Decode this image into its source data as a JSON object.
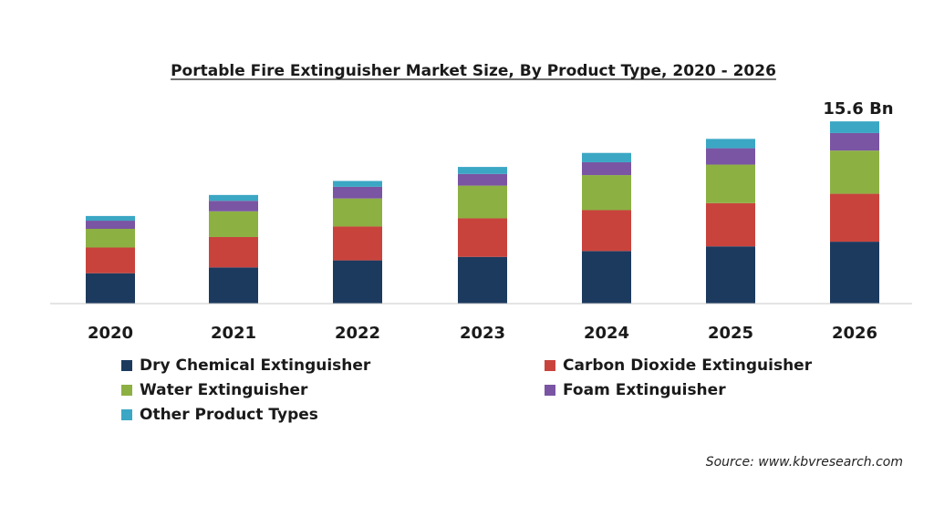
{
  "chart_data": {
    "type": "bar",
    "stacked": true,
    "title": "Portable Fire Extinguisher Market Size, By Product Type, 2020 - 2026",
    "categories": [
      "2020",
      "2021",
      "2022",
      "2023",
      "2024",
      "2025",
      "2026"
    ],
    "series": [
      {
        "name": "Dry Chemical Extinguisher",
        "color": "#1c3a5e",
        "values": [
          2.6,
          3.1,
          3.7,
          4.0,
          4.5,
          4.9,
          5.3
        ]
      },
      {
        "name": "Carbon Dioxide Extinguisher",
        "color": "#c9433d",
        "values": [
          2.2,
          2.6,
          2.9,
          3.3,
          3.5,
          3.7,
          4.1
        ]
      },
      {
        "name": "Water Extinguisher",
        "color": "#8db043",
        "values": [
          1.6,
          2.2,
          2.4,
          2.8,
          3.0,
          3.3,
          3.7
        ]
      },
      {
        "name": "Foam Extinguisher",
        "color": "#7a55a3",
        "values": [
          0.7,
          0.9,
          1.0,
          1.0,
          1.1,
          1.4,
          1.5
        ]
      },
      {
        "name": "Other Product Types",
        "color": "#3ba7c4",
        "values": [
          0.4,
          0.5,
          0.5,
          0.6,
          0.8,
          0.8,
          1.0
        ]
      }
    ],
    "annotations": [
      {
        "category": "2026",
        "text": "15.6 Bn"
      }
    ],
    "ylim": [
      0,
      16
    ],
    "grid": false,
    "legend_position": "bottom",
    "source": "Source: www.kbvresearch.com"
  }
}
